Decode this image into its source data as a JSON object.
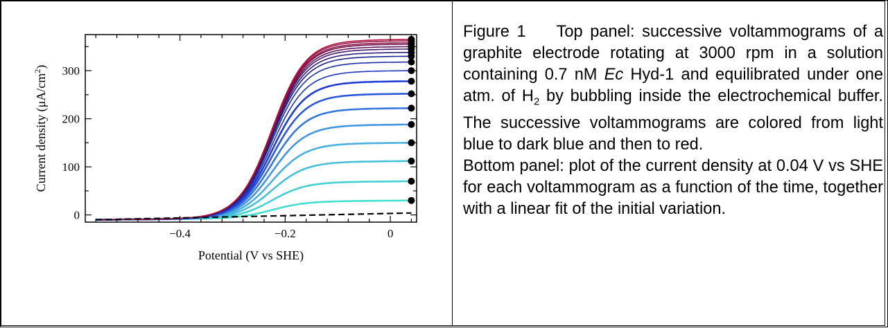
{
  "chart_data": {
    "type": "line",
    "xlabel": "Potential (V vs SHE)",
    "ylabel": "Current density (μA/cm²)",
    "xlim": [
      -0.58,
      0.05
    ],
    "ylim": [
      -15,
      375
    ],
    "x_ticks": [
      -0.4,
      -0.2,
      0
    ],
    "x_tick_labels": [
      "−0.4",
      "−0.2",
      "0"
    ],
    "y_ticks": [
      0,
      100,
      200,
      300
    ],
    "y_tick_labels": [
      "0",
      "100",
      "200",
      "300"
    ],
    "grid": false,
    "legend": "none",
    "midpoint_potential": -0.225,
    "x_end": 0.04,
    "color_order": [
      "#40e0d0",
      "#4aa8e0",
      "#1e3ed8",
      "#18208a",
      "#6a1050",
      "#b0103a"
    ],
    "baseline": {
      "name": "",
      "x": [
        -0.56,
        0.04
      ],
      "y": [
        -10,
        4
      ],
      "style": "dashed",
      "color": "#000000"
    },
    "series_end_values": [
      30,
      70,
      112,
      150,
      188,
      222,
      252,
      278,
      300,
      318,
      330,
      338,
      345,
      350,
      355,
      358,
      362,
      365
    ]
  },
  "caption": {
    "label": "Figure 1",
    "top_part1": "Top panel: successive voltammograms of a graphite electrode rotating at 3000 rpm in a solution containing 0.7 nM ",
    "top_italic": "Ec",
    "top_part2": " Hyd-1 and equilibrated under one atm. of H",
    "top_sub": "2",
    "top_part3": " by bubbling inside the electrochemical buffer. The successive voltammograms are colored from light blue to dark blue and then to red.",
    "bottom": "Bottom panel: plot of the current density at 0.04 V vs SHE for each voltammogram as a function of the time, together with a linear fit of the initial variation."
  }
}
